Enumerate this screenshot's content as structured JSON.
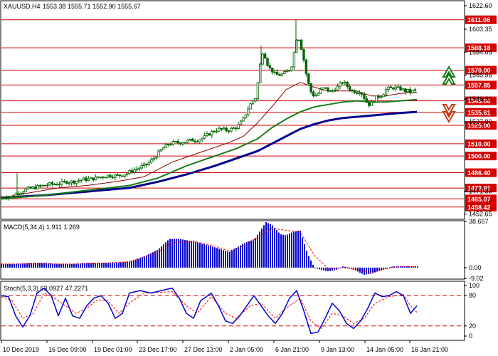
{
  "header": {
    "symbol": "XAUUSD,H4",
    "ohlc": "1553.38 1555.71 1552.90 1555.67"
  },
  "macd_panel": {
    "label": "MACD(5,34,4) 1.911 1.269"
  },
  "stoch_panel": {
    "label": "Stoch(5,3,3) 63.0927 47.2271"
  },
  "colors": {
    "level_line": "#d40000",
    "candle": "#006400",
    "ma_thin": "#8b0000",
    "ma_mid": "#1a7a1a",
    "ma_thick": "#00008b",
    "histogram": "#0000cc",
    "signal": "#ff0000",
    "up_arrow": "#1a7a1a",
    "down_arrow": "#c0401a"
  },
  "icons": {
    "up": "double-chevron-up-icon",
    "down": "double-chevron-down-icon"
  },
  "chart_data": [
    {
      "type": "candlestick",
      "ylim": [
        1449,
        1626
      ],
      "x_ticks": [
        "10 Dec 2019",
        "16 Dec 09:00",
        "19 Dec 01:00",
        "23 Dec 17:00",
        "27 Dec 13:00",
        "2 Jan 05:00",
        "6 Jan 21:00",
        "9 Jan 13:00",
        "14 Jan 05:00",
        "16 Jan 21:00"
      ],
      "y_ticks": [
        1622.6,
        1603.35,
        1584.65,
        1565.95,
        1546.5,
        1527.8,
        1471.35,
        1452.65
      ],
      "price_levels": [
        {
          "label": "1611.06",
          "value": 1611.06
        },
        {
          "label": "1588.18",
          "value": 1588.18
        },
        {
          "label": "1570.00",
          "value": 1570.0
        },
        {
          "label": "1557.85",
          "value": 1557.85
        },
        {
          "label": "1545.00",
          "value": 1545.0
        },
        {
          "label": "1535.61",
          "value": 1535.61
        },
        {
          "label": "1525.00",
          "value": 1525.0
        },
        {
          "label": "1510.00",
          "value": 1510.0
        },
        {
          "label": "1500.00",
          "value": 1500.0
        },
        {
          "label": "1486.40",
          "value": 1486.4
        },
        {
          "label": "1473.91",
          "value": 1473.91
        },
        {
          "label": "1465.07",
          "value": 1465.07
        },
        {
          "label": "1458.42",
          "value": 1458.42
        }
      ],
      "price_path": [
        [
          0,
          1466
        ],
        [
          6,
          1467
        ],
        [
          12,
          1466
        ],
        [
          20,
          1469
        ],
        [
          28,
          1471
        ],
        [
          36,
          1473
        ],
        [
          44,
          1474
        ],
        [
          52,
          1475
        ],
        [
          60,
          1476
        ],
        [
          68,
          1477
        ],
        [
          76,
          1477
        ],
        [
          84,
          1478
        ],
        [
          92,
          1479
        ],
        [
          100,
          1479
        ],
        [
          108,
          1480
        ],
        [
          116,
          1481
        ],
        [
          124,
          1481
        ],
        [
          132,
          1482
        ],
        [
          140,
          1483
        ],
        [
          148,
          1484
        ],
        [
          156,
          1484
        ],
        [
          164,
          1484
        ],
        [
          172,
          1485
        ],
        [
          180,
          1487
        ],
        [
          188,
          1489
        ],
        [
          196,
          1491
        ],
        [
          204,
          1493
        ],
        [
          212,
          1497
        ],
        [
          220,
          1502
        ],
        [
          228,
          1507
        ],
        [
          236,
          1510
        ],
        [
          244,
          1511
        ],
        [
          252,
          1511
        ],
        [
          260,
          1512
        ],
        [
          268,
          1513
        ],
        [
          276,
          1513
        ],
        [
          284,
          1515
        ],
        [
          292,
          1518
        ],
        [
          300,
          1521
        ],
        [
          308,
          1522
        ],
        [
          316,
          1521
        ],
        [
          324,
          1522
        ],
        [
          332,
          1524
        ],
        [
          340,
          1530
        ],
        [
          346,
          1538
        ],
        [
          352,
          1544
        ],
        [
          358,
          1548
        ],
        [
          363,
          1572
        ],
        [
          368,
          1587
        ],
        [
          372,
          1578
        ],
        [
          376,
          1572
        ],
        [
          380,
          1570
        ],
        [
          384,
          1567
        ],
        [
          388,
          1566
        ],
        [
          392,
          1566
        ],
        [
          396,
          1567
        ],
        [
          400,
          1568
        ],
        [
          404,
          1570
        ],
        [
          408,
          1574
        ],
        [
          412,
          1586
        ],
        [
          416,
          1600
        ],
        [
          420,
          1592
        ],
        [
          424,
          1582
        ],
        [
          428,
          1568
        ],
        [
          432,
          1558
        ],
        [
          436,
          1551
        ],
        [
          440,
          1549
        ],
        [
          444,
          1550
        ],
        [
          448,
          1553
        ],
        [
          452,
          1555
        ],
        [
          456,
          1555
        ],
        [
          460,
          1553
        ],
        [
          464,
          1552
        ],
        [
          468,
          1555
        ],
        [
          472,
          1556
        ],
        [
          476,
          1558
        ],
        [
          480,
          1561
        ],
        [
          484,
          1558
        ],
        [
          488,
          1556
        ],
        [
          492,
          1553
        ],
        [
          496,
          1553
        ],
        [
          500,
          1552
        ],
        [
          504,
          1553
        ],
        [
          508,
          1550
        ],
        [
          512,
          1545
        ],
        [
          516,
          1542
        ],
        [
          520,
          1543
        ],
        [
          524,
          1546
        ],
        [
          528,
          1548
        ],
        [
          532,
          1549
        ],
        [
          536,
          1550
        ],
        [
          540,
          1554
        ],
        [
          544,
          1555
        ],
        [
          548,
          1555
        ],
        [
          552,
          1556
        ],
        [
          556,
          1555
        ],
        [
          560,
          1555
        ],
        [
          564,
          1554
        ],
        [
          568,
          1553
        ],
        [
          572,
          1553
        ],
        [
          576,
          1552
        ],
        [
          580,
          1553
        ],
        [
          584,
          1555
        ]
      ],
      "ma_thin": [
        [
          0,
          1466
        ],
        [
          40,
          1470
        ],
        [
          80,
          1474
        ],
        [
          120,
          1476
        ],
        [
          160,
          1479
        ],
        [
          200,
          1483
        ],
        [
          240,
          1495
        ],
        [
          280,
          1503
        ],
        [
          320,
          1511
        ],
        [
          340,
          1516
        ],
        [
          360,
          1527
        ],
        [
          380,
          1540
        ],
        [
          400,
          1554
        ],
        [
          420,
          1560
        ],
        [
          440,
          1556
        ],
        [
          460,
          1553
        ],
        [
          480,
          1553
        ],
        [
          500,
          1553
        ],
        [
          520,
          1549
        ],
        [
          540,
          1549
        ],
        [
          560,
          1551
        ],
        [
          584,
          1552
        ]
      ],
      "ma_mid": [
        [
          0,
          1465
        ],
        [
          60,
          1468
        ],
        [
          120,
          1472
        ],
        [
          180,
          1476
        ],
        [
          220,
          1482
        ],
        [
          260,
          1492
        ],
        [
          300,
          1500
        ],
        [
          330,
          1506
        ],
        [
          360,
          1514
        ],
        [
          380,
          1523
        ],
        [
          400,
          1530
        ],
        [
          420,
          1536
        ],
        [
          440,
          1540
        ],
        [
          460,
          1542
        ],
        [
          480,
          1544
        ],
        [
          500,
          1545
        ],
        [
          520,
          1544
        ],
        [
          540,
          1544
        ],
        [
          560,
          1545
        ],
        [
          584,
          1546
        ]
      ],
      "ma_thick": [
        [
          0,
          1466
        ],
        [
          60,
          1468
        ],
        [
          120,
          1471
        ],
        [
          180,
          1474
        ],
        [
          220,
          1479
        ],
        [
          260,
          1485
        ],
        [
          300,
          1492
        ],
        [
          330,
          1498
        ],
        [
          360,
          1504
        ],
        [
          380,
          1510
        ],
        [
          400,
          1516
        ],
        [
          420,
          1522
        ],
        [
          440,
          1526
        ],
        [
          460,
          1529
        ],
        [
          480,
          1531
        ],
        [
          500,
          1532
        ],
        [
          520,
          1533
        ],
        [
          540,
          1534
        ],
        [
          560,
          1535
        ],
        [
          584,
          1536
        ]
      ]
    },
    {
      "type": "bar",
      "ylim": [
        -9.02,
        38.657
      ],
      "y_ticks": [
        "38.657",
        "0.00",
        "-9.02"
      ],
      "histogram_path": [
        [
          0,
          3
        ],
        [
          20,
          3
        ],
        [
          40,
          4
        ],
        [
          60,
          4
        ],
        [
          80,
          3
        ],
        [
          100,
          3
        ],
        [
          120,
          4
        ],
        [
          140,
          4
        ],
        [
          160,
          4
        ],
        [
          180,
          5
        ],
        [
          200,
          9
        ],
        [
          220,
          15
        ],
        [
          236,
          24
        ],
        [
          250,
          24
        ],
        [
          270,
          22
        ],
        [
          300,
          17
        ],
        [
          320,
          13
        ],
        [
          340,
          20
        ],
        [
          356,
          24
        ],
        [
          364,
          31
        ],
        [
          372,
          38
        ],
        [
          380,
          36
        ],
        [
          392,
          28
        ],
        [
          400,
          27
        ],
        [
          410,
          30
        ],
        [
          420,
          31
        ],
        [
          430,
          12
        ],
        [
          440,
          0
        ],
        [
          450,
          -2
        ],
        [
          460,
          -3
        ],
        [
          470,
          -2
        ],
        [
          480,
          1
        ],
        [
          490,
          0
        ],
        [
          500,
          -3
        ],
        [
          510,
          -6
        ],
        [
          520,
          -5
        ],
        [
          530,
          -3
        ],
        [
          540,
          -1
        ],
        [
          550,
          1
        ],
        [
          560,
          1
        ],
        [
          570,
          1
        ],
        [
          586,
          1
        ]
      ],
      "signal_path": [
        [
          0,
          3
        ],
        [
          60,
          3
        ],
        [
          120,
          3
        ],
        [
          180,
          5
        ],
        [
          220,
          13
        ],
        [
          240,
          21
        ],
        [
          270,
          22
        ],
        [
          300,
          18
        ],
        [
          320,
          14
        ],
        [
          340,
          18
        ],
        [
          360,
          25
        ],
        [
          380,
          33
        ],
        [
          400,
          31
        ],
        [
          420,
          30
        ],
        [
          440,
          10
        ],
        [
          460,
          -1
        ],
        [
          480,
          0
        ],
        [
          500,
          -2
        ],
        [
          520,
          -4
        ],
        [
          540,
          -1
        ],
        [
          560,
          1
        ],
        [
          586,
          1
        ]
      ]
    },
    {
      "type": "line",
      "ylim": [
        0,
        100
      ],
      "y_ticks": [
        "100",
        "80",
        "20",
        "0"
      ],
      "reference_lines": [
        80,
        20
      ],
      "k_path": [
        [
          0,
          80
        ],
        [
          10,
          78
        ],
        [
          20,
          40
        ],
        [
          30,
          18
        ],
        [
          40,
          40
        ],
        [
          50,
          85
        ],
        [
          60,
          95
        ],
        [
          70,
          80
        ],
        [
          80,
          40
        ],
        [
          90,
          75
        ],
        [
          100,
          40
        ],
        [
          110,
          35
        ],
        [
          120,
          60
        ],
        [
          130,
          75
        ],
        [
          140,
          80
        ],
        [
          150,
          65
        ],
        [
          160,
          35
        ],
        [
          170,
          45
        ],
        [
          180,
          85
        ],
        [
          195,
          90
        ],
        [
          210,
          85
        ],
        [
          225,
          90
        ],
        [
          240,
          95
        ],
        [
          250,
          75
        ],
        [
          260,
          45
        ],
        [
          270,
          35
        ],
        [
          280,
          70
        ],
        [
          295,
          85
        ],
        [
          305,
          60
        ],
        [
          315,
          30
        ],
        [
          325,
          25
        ],
        [
          335,
          40
        ],
        [
          345,
          60
        ],
        [
          355,
          80
        ],
        [
          365,
          60
        ],
        [
          375,
          40
        ],
        [
          385,
          25
        ],
        [
          395,
          45
        ],
        [
          405,
          75
        ],
        [
          415,
          90
        ],
        [
          425,
          50
        ],
        [
          435,
          5
        ],
        [
          445,
          8
        ],
        [
          455,
          35
        ],
        [
          465,
          65
        ],
        [
          475,
          50
        ],
        [
          485,
          25
        ],
        [
          495,
          15
        ],
        [
          505,
          30
        ],
        [
          515,
          55
        ],
        [
          525,
          85
        ],
        [
          535,
          78
        ],
        [
          545,
          80
        ],
        [
          555,
          88
        ],
        [
          565,
          80
        ],
        [
          575,
          45
        ],
        [
          584,
          60
        ]
      ],
      "d_path": [
        [
          0,
          78
        ],
        [
          15,
          70
        ],
        [
          30,
          35
        ],
        [
          45,
          45
        ],
        [
          60,
          85
        ],
        [
          75,
          75
        ],
        [
          90,
          60
        ],
        [
          105,
          45
        ],
        [
          120,
          55
        ],
        [
          135,
          72
        ],
        [
          150,
          70
        ],
        [
          165,
          45
        ],
        [
          180,
          65
        ],
        [
          200,
          85
        ],
        [
          220,
          86
        ],
        [
          240,
          88
        ],
        [
          260,
          60
        ],
        [
          275,
          45
        ],
        [
          295,
          78
        ],
        [
          315,
          45
        ],
        [
          330,
          35
        ],
        [
          350,
          60
        ],
        [
          365,
          65
        ],
        [
          385,
          35
        ],
        [
          400,
          55
        ],
        [
          420,
          75
        ],
        [
          435,
          30
        ],
        [
          450,
          15
        ],
        [
          465,
          45
        ],
        [
          480,
          40
        ],
        [
          495,
          25
        ],
        [
          510,
          35
        ],
        [
          525,
          65
        ],
        [
          545,
          78
        ],
        [
          565,
          82
        ],
        [
          575,
          60
        ],
        [
          584,
          47
        ]
      ]
    }
  ]
}
